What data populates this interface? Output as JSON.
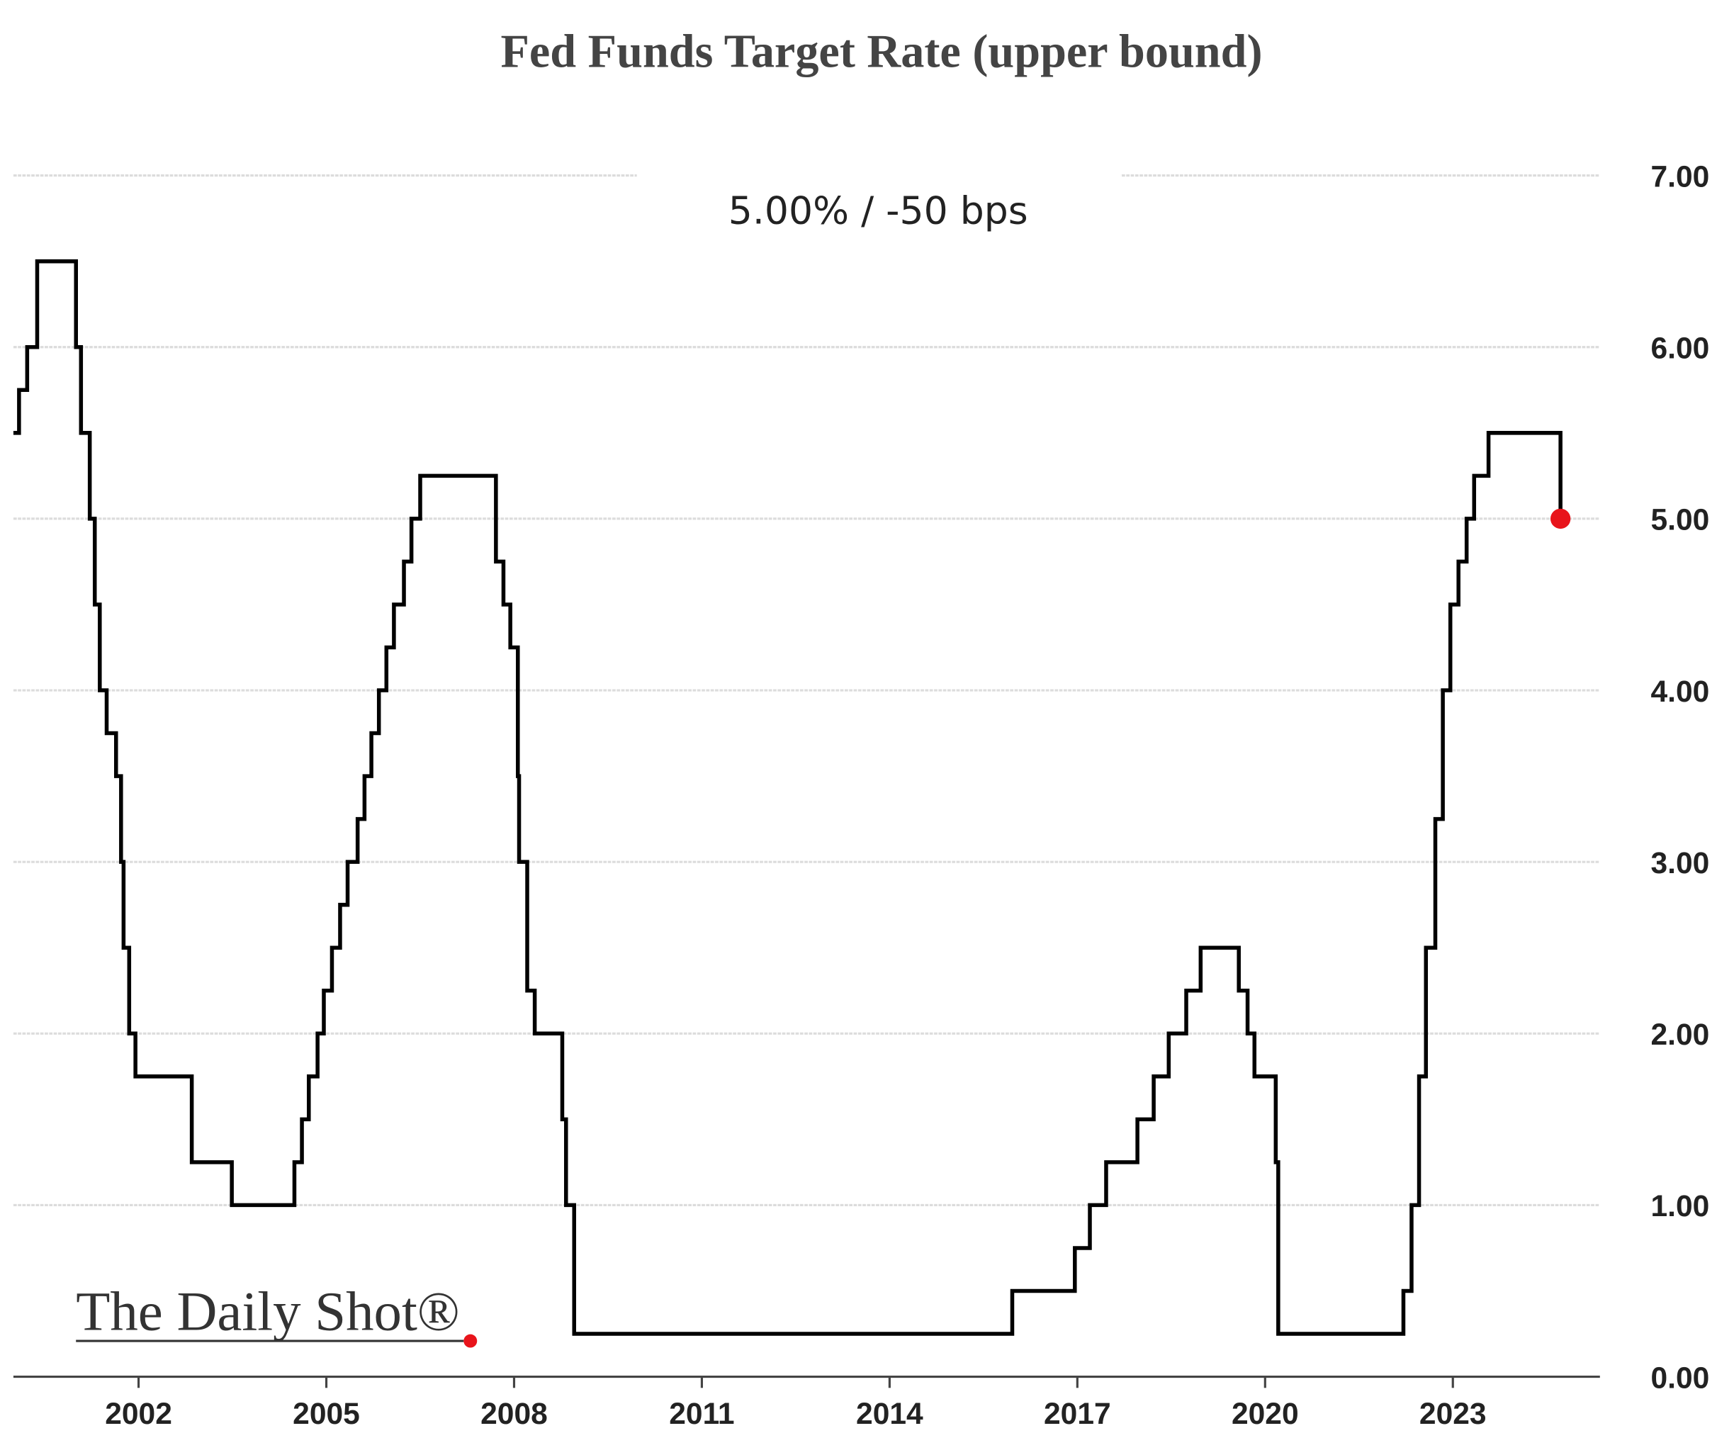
{
  "chart_data": {
    "type": "step",
    "title": "Fed Funds Target Rate (upper bound)",
    "annotation": "5.00%  /  -50 bps",
    "watermark": "The Daily Shot®",
    "series": [
      {
        "name": "Fed Funds Target Rate (upper bound)",
        "color": "#000000",
        "x": [
          2000.0,
          2000.09,
          2000.22,
          2000.38,
          2001.0,
          2001.08,
          2001.22,
          2001.3,
          2001.38,
          2001.49,
          2001.64,
          2001.72,
          2001.76,
          2001.85,
          2001.95,
          2002.85,
          2003.49,
          2004.49,
          2004.61,
          2004.72,
          2004.86,
          2004.96,
          2005.09,
          2005.22,
          2005.34,
          2005.5,
          2005.61,
          2005.72,
          2005.84,
          2005.96,
          2006.08,
          2006.24,
          2006.36,
          2006.5,
          2007.71,
          2007.83,
          2007.94,
          2008.06,
          2008.08,
          2008.21,
          2008.33,
          2008.77,
          2008.83,
          2008.96,
          2015.96,
          2016.96,
          2017.2,
          2017.46,
          2017.96,
          2018.22,
          2018.46,
          2018.74,
          2018.97,
          2019.58,
          2019.72,
          2019.83,
          2020.17,
          2020.21,
          2022.21,
          2022.34,
          2022.46,
          2022.57,
          2022.72,
          2022.84,
          2022.96,
          2023.09,
          2023.22,
          2023.34,
          2023.57,
          2024.72
        ],
        "values": [
          5.5,
          5.75,
          6.0,
          6.5,
          6.0,
          5.5,
          5.0,
          4.5,
          4.0,
          3.75,
          3.5,
          3.0,
          2.5,
          2.0,
          1.75,
          1.25,
          1.0,
          1.25,
          1.5,
          1.75,
          2.0,
          2.25,
          2.5,
          2.75,
          3.0,
          3.25,
          3.5,
          3.75,
          4.0,
          4.25,
          4.5,
          4.75,
          5.0,
          5.25,
          4.75,
          4.5,
          4.25,
          3.5,
          3.0,
          2.25,
          2.0,
          1.5,
          1.0,
          0.25,
          0.5,
          0.75,
          1.0,
          1.25,
          1.5,
          1.75,
          2.0,
          2.25,
          2.5,
          2.25,
          2.0,
          1.75,
          1.25,
          0.25,
          0.5,
          1.0,
          1.75,
          2.5,
          3.25,
          4.0,
          4.5,
          4.75,
          5.0,
          5.25,
          5.5,
          5.0
        ]
      }
    ],
    "marker_color": "#e8141b",
    "xlim": [
      2000.0,
      2025.35
    ],
    "xticks": [
      2002,
      2005,
      2008,
      2011,
      2014,
      2017,
      2020,
      2023
    ],
    "ylim": [
      0,
      7
    ],
    "yticks": [
      {
        "value": 0,
        "label": "0.00"
      },
      {
        "value": 1,
        "label": "1.00"
      },
      {
        "value": 2,
        "label": "2.00"
      },
      {
        "value": 3,
        "label": "3.00"
      },
      {
        "value": 4,
        "label": "4.00"
      },
      {
        "value": 5,
        "label": "5.00"
      },
      {
        "value": 6,
        "label": "6.00"
      },
      {
        "value": 7,
        "label": "7.00"
      }
    ],
    "grid": true
  }
}
